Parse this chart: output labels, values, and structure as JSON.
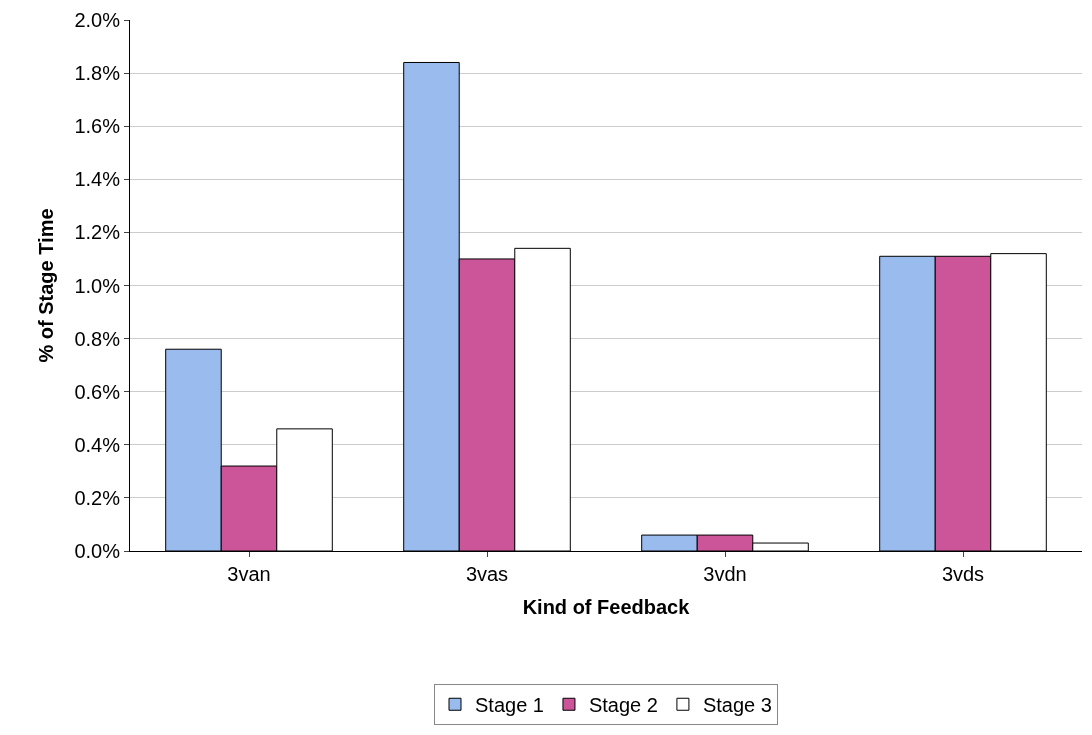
{
  "chart_data": {
    "type": "bar",
    "xlabel": "Kind of Feedback",
    "ylabel": "% of Stage Time",
    "categories": [
      "3van",
      "3vas",
      "3vdn",
      "3vds"
    ],
    "series": [
      {
        "name": "Stage 1",
        "color": "#99bbee",
        "values": [
          0.76,
          1.84,
          0.06,
          1.11
        ]
      },
      {
        "name": "Stage 2",
        "color": "#cc5599",
        "values": [
          0.32,
          1.1,
          0.06,
          1.11
        ]
      },
      {
        "name": "Stage 3",
        "color": "#ffffff",
        "values": [
          0.46,
          1.14,
          0.03,
          1.12
        ]
      }
    ],
    "ylim": [
      0,
      2.0
    ],
    "yticks": [
      {
        "value": 0,
        "label": "0.0%"
      },
      {
        "value": 0.2,
        "label": "0.2%"
      },
      {
        "value": 0.4,
        "label": "0.4%"
      },
      {
        "value": 0.6,
        "label": "0.6%"
      },
      {
        "value": 0.8,
        "label": "0.8%"
      },
      {
        "value": 1.0,
        "label": "1.0%"
      },
      {
        "value": 1.2,
        "label": "1.2%"
      },
      {
        "value": 1.4,
        "label": "1.4%"
      },
      {
        "value": 1.6,
        "label": "1.6%"
      },
      {
        "value": 1.8,
        "label": "1.8%"
      },
      {
        "value": 2.0,
        "label": "2.0%"
      }
    ],
    "grid": "y",
    "legend": "bottom"
  }
}
